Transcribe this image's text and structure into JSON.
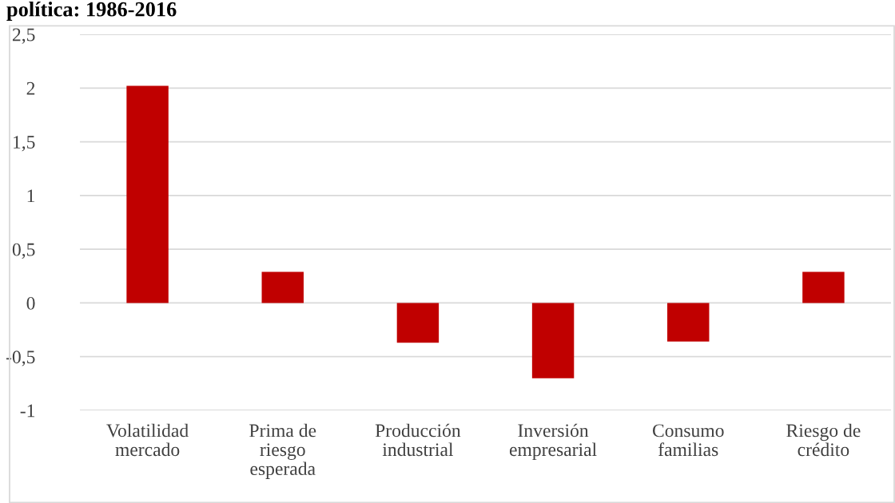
{
  "chart_data": {
    "type": "bar",
    "title": "política: 1986-2016",
    "categories": [
      "Volatilidad\nmercado",
      "Prima de\nriesgo\nesperada",
      "Producción\nindustrial",
      "Inversión\nempresarial",
      "Consumo\nfamilias",
      "Riesgo de\ncrédito"
    ],
    "values": [
      2.02,
      0.29,
      -0.37,
      -0.7,
      -0.36,
      0.29
    ],
    "color": "#c00000",
    "ylim": [
      -1,
      2.5
    ],
    "yticks": [
      {
        "value": -1,
        "label": "-1"
      },
      {
        "value": -0.5,
        "label": "-0,5"
      },
      {
        "value": 0,
        "label": "0"
      },
      {
        "value": 0.5,
        "label": "0,5"
      },
      {
        "value": 1,
        "label": "1"
      },
      {
        "value": 1.5,
        "label": "1,5"
      },
      {
        "value": 2,
        "label": "2"
      },
      {
        "value": 2.5,
        "label": "2,5"
      }
    ],
    "grid": "y"
  }
}
